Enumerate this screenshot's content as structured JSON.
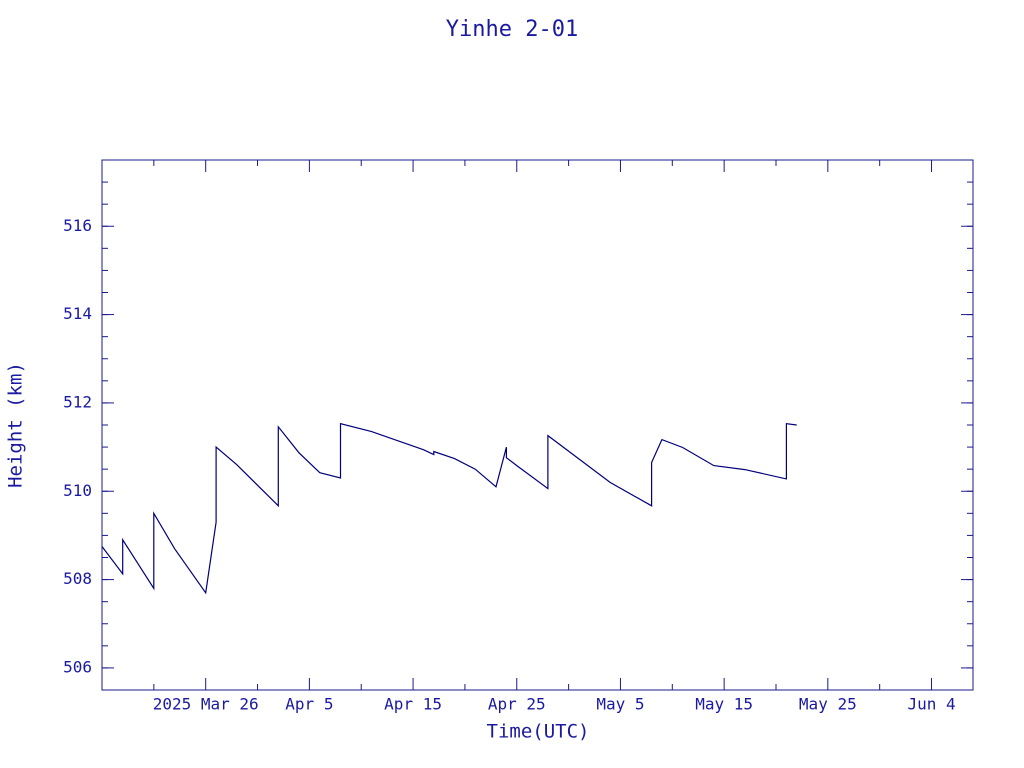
{
  "chart_data": {
    "type": "line",
    "title": "Yinhe 2-01",
    "x_label": "Time(UTC)",
    "y_label": "Height (km)",
    "color": "#00007a",
    "xlim": [
      "2025-03-16",
      "2025-06-08"
    ],
    "xticks": [
      {
        "value": "2025-03-26",
        "label": "2025 Mar 26"
      },
      {
        "value": "2025-04-05",
        "label": "Apr  5"
      },
      {
        "value": "2025-04-15",
        "label": "Apr 15"
      },
      {
        "value": "2025-04-25",
        "label": "Apr 25"
      },
      {
        "value": "2025-05-05",
        "label": "May  5"
      },
      {
        "value": "2025-05-15",
        "label": "May 15"
      },
      {
        "value": "2025-05-25",
        "label": "May 25"
      },
      {
        "value": "2025-06-04",
        "label": "Jun  4"
      }
    ],
    "ylim": [
      505.5,
      517.5
    ],
    "yticks": [
      506,
      508,
      510,
      512,
      514,
      516
    ],
    "series": [
      {
        "name": "Yinhe 2-01",
        "color": "#00007a",
        "x": [
          "2025-03-16",
          "2025-03-18",
          "2025-03-18",
          "2025-03-21",
          "2025-03-21",
          "2025-03-23",
          "2025-03-26",
          "2025-03-27",
          "2025-03-27",
          "2025-03-27",
          "2025-03-29",
          "2025-04-02",
          "2025-04-02",
          "2025-04-04",
          "2025-04-06",
          "2025-04-08",
          "2025-04-08",
          "2025-04-11",
          "2025-04-16",
          "2025-04-17",
          "2025-04-17",
          "2025-04-19",
          "2025-04-21",
          "2025-04-23",
          "2025-04-24",
          "2025-04-24",
          "2025-04-25",
          "2025-04-28",
          "2025-04-28",
          "2025-05-04",
          "2025-05-08",
          "2025-05-08",
          "2025-05-09",
          "2025-05-11",
          "2025-05-14",
          "2025-05-17",
          "2025-05-21",
          "2025-05-21",
          "2025-05-22"
        ],
        "values": [
          508.75,
          508.13,
          508.9,
          507.8,
          509.5,
          508.7,
          507.7,
          509.3,
          509.3,
          511.0,
          510.6,
          509.67,
          511.46,
          510.87,
          510.42,
          510.3,
          511.53,
          511.35,
          510.94,
          510.83,
          510.9,
          510.74,
          510.5,
          510.1,
          511.0,
          510.76,
          510.58,
          510.06,
          511.26,
          510.2,
          509.67,
          510.65,
          511.17,
          510.99,
          510.58,
          510.49,
          510.28,
          511.53,
          511.5
        ]
      }
    ]
  }
}
